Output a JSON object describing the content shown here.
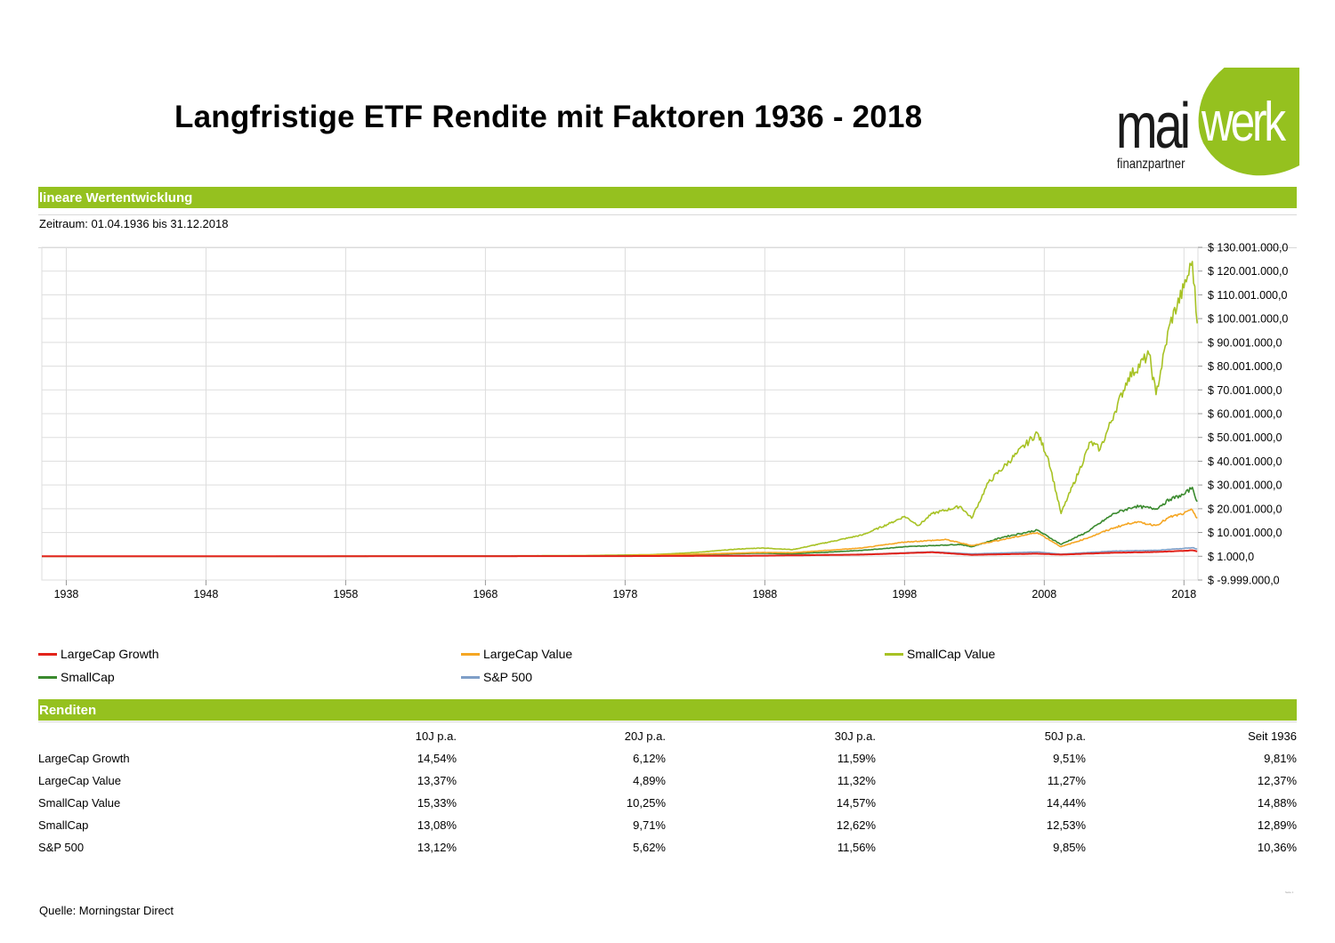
{
  "title": "Langfristige ETF Rendite mit Faktoren 1936 - 2018",
  "logo": {
    "text_mai": "mai",
    "text_werk": "werk",
    "subtitle": "finanzpartner",
    "green": "#95c11f"
  },
  "section_chart": {
    "header": "lineare Wertentwicklung",
    "period": "Zeitraum: 01.04.1936 bis 31.12.2018"
  },
  "chart_data": {
    "type": "line",
    "title": "",
    "xlabel": "",
    "ylabel": "",
    "grid": true,
    "legend_position": "bottom",
    "x_ticks": [
      "1938",
      "1948",
      "1958",
      "1968",
      "1978",
      "1988",
      "1998",
      "2008",
      "2018"
    ],
    "y_ticks": [
      "$ 130.001.000,0",
      "$ 120.001.000,0",
      "$ 110.001.000,0",
      "$ 100.001.000,0",
      "$ 90.001.000,0",
      "$ 80.001.000,0",
      "$ 70.001.000,0",
      "$ 60.001.000,0",
      "$ 50.001.000,0",
      "$ 40.001.000,0",
      "$ 30.001.000,0",
      "$ 20.001.000,0",
      "$ 10.001.000,0",
      "$ 1.000,0",
      "$ -9.999.000,0"
    ],
    "xlim": [
      1936.25,
      2019.0
    ],
    "ylim": [
      -9999000,
      130001000
    ],
    "series": [
      {
        "name": "SmallCap Value",
        "color": "#a7c224",
        "x": [
          1936.25,
          1950,
          1960,
          1970,
          1975,
          1980,
          1983,
          1986,
          1987.8,
          1990,
          1993,
          1995,
          1997,
          1998,
          1999,
          2000,
          2002,
          2002.8,
          2004,
          2006,
          2007.5,
          2008.3,
          2009.2,
          2010.5,
          2011.3,
          2012,
          2013,
          2014,
          2015.5,
          2016,
          2017,
          2018.0,
          2018.6,
          2018.95
        ],
        "y": [
          1000,
          2000,
          20000,
          200000,
          300000,
          700000,
          1600000,
          3000000,
          3500000,
          2800000,
          6500000,
          9000000,
          14000000,
          16800000,
          13000000,
          18000000,
          21000000,
          16000000,
          31000000,
          43000000,
          52000000,
          41000000,
          18000000,
          36000000,
          48000000,
          45000000,
          60000000,
          75000000,
          85000000,
          68000000,
          98000000,
          113000000,
          124000000,
          98000000
        ]
      },
      {
        "name": "SmallCap",
        "color": "#3a8a2e",
        "x": [
          1936.25,
          1950,
          1960,
          1970,
          1978,
          1983,
          1987.8,
          1990,
          1995,
          1998,
          2000,
          2002,
          2002.8,
          2005,
          2007.5,
          2009.2,
          2011,
          2013,
          2014.5,
          2016,
          2017,
          2018.0,
          2018.6,
          2018.95
        ],
        "y": [
          1000,
          2000,
          15000,
          100000,
          250000,
          700000,
          1300000,
          1000000,
          2500000,
          4000000,
          4500000,
          5000000,
          4000000,
          8000000,
          11000000,
          5000000,
          10000000,
          18000000,
          21000000,
          20000000,
          24000000,
          26000000,
          29000000,
          23000000
        ]
      },
      {
        "name": "LargeCap Value",
        "color": "#f5a623",
        "x": [
          1936.25,
          1950,
          1960,
          1970,
          1978,
          1983,
          1987.8,
          1990,
          1995,
          1998,
          1999.5,
          2001,
          2002.8,
          2005,
          2007.5,
          2009.2,
          2011,
          2013,
          2014.5,
          2016,
          2017,
          2018.0,
          2018.6,
          2018.95
        ],
        "y": [
          1000,
          3000,
          20000,
          100000,
          300000,
          900000,
          1600000,
          1500000,
          3500000,
          6000000,
          6500000,
          7000000,
          4500000,
          7000000,
          10000000,
          4000000,
          7500000,
          12000000,
          14500000,
          13000000,
          16500000,
          18000000,
          19500000,
          16000000
        ]
      },
      {
        "name": "S&P 500",
        "color": "#7f9fc8",
        "x": [
          1936.25,
          1960,
          1978,
          1987.8,
          1995,
          2000,
          2002.8,
          2007.5,
          2009.2,
          2013,
          2016,
          2018.0,
          2018.6,
          2018.95
        ],
        "y": [
          1000,
          20000,
          100000,
          300000,
          800000,
          1900000,
          1000000,
          1800000,
          900000,
          2200000,
          2500000,
          3300000,
          3600000,
          3100000
        ]
      },
      {
        "name": "LargeCap Growth",
        "color": "#e2231a",
        "x": [
          1936.25,
          1960,
          1978,
          1987.8,
          1995,
          2000,
          2002.8,
          2007.5,
          2009.2,
          2013,
          2016,
          2018.0,
          2018.6,
          2018.95
        ],
        "y": [
          1000,
          15000,
          80000,
          250000,
          700000,
          1700000,
          600000,
          1100000,
          700000,
          1500000,
          1800000,
          2300000,
          2500000,
          2100000
        ]
      }
    ]
  },
  "legend": [
    {
      "label": "LargeCap Growth",
      "color": "#e2231a"
    },
    {
      "label": "LargeCap Value",
      "color": "#f5a623"
    },
    {
      "label": "SmallCap Value",
      "color": "#a7c224"
    },
    {
      "label": "SmallCap",
      "color": "#3a8a2e"
    },
    {
      "label": "S&P 500",
      "color": "#7f9fc8"
    }
  ],
  "returns": {
    "header": "Renditen",
    "columns": [
      "",
      "10J p.a.",
      "20J p.a.",
      "30J p.a.",
      "50J p.a.",
      "Seit 1936"
    ],
    "rows": [
      [
        "LargeCap Growth",
        "14,54%",
        "6,12%",
        "11,59%",
        "9,51%",
        "9,81%"
      ],
      [
        "LargeCap Value",
        "13,37%",
        "4,89%",
        "11,32%",
        "11,27%",
        "12,37%"
      ],
      [
        "SmallCap Value",
        "15,33%",
        "10,25%",
        "14,57%",
        "14,44%",
        "14,88%"
      ],
      [
        "SmallCap",
        "13,08%",
        "9,71%",
        "12,62%",
        "12,53%",
        "12,89%"
      ],
      [
        "S&P 500",
        "13,12%",
        "5,62%",
        "11,56%",
        "9,85%",
        "10,36%"
      ]
    ]
  },
  "source": "Quelle: Morningstar Direct",
  "footer_mark": "Seite 1"
}
